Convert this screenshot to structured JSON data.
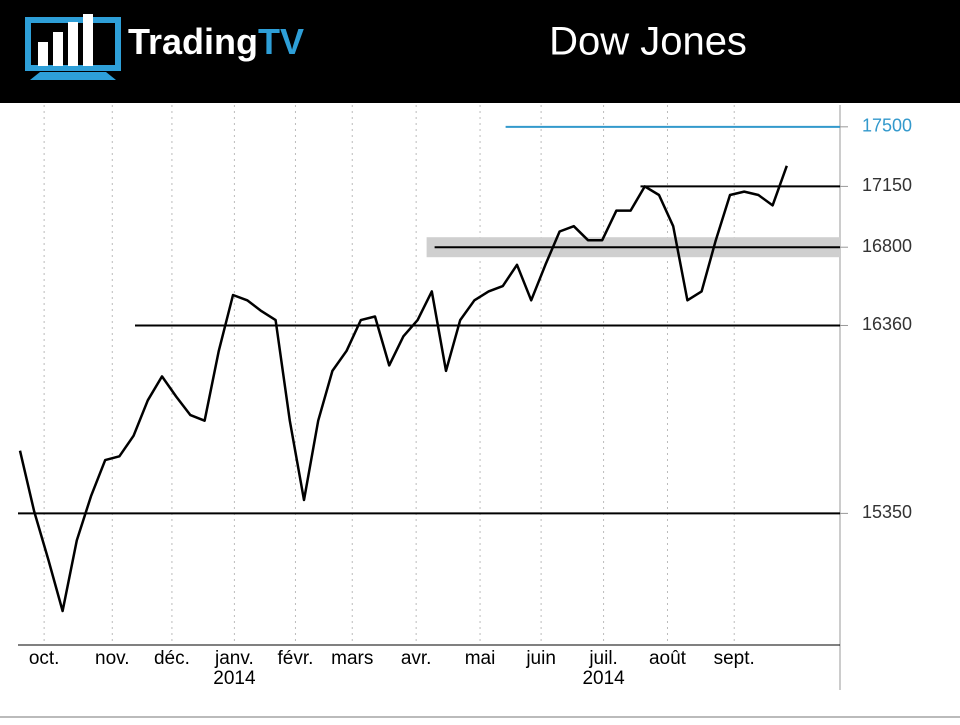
{
  "header": {
    "brand_main": "Trading",
    "brand_accent": "TV"
  },
  "chart_data": {
    "type": "line",
    "title": "Dow Jones",
    "color": "#000000",
    "log_scale": true,
    "values": [
      15680,
      15360,
      15110,
      14850,
      15210,
      15440,
      15630,
      15650,
      15760,
      15950,
      16080,
      15970,
      15870,
      15840,
      16220,
      16530,
      16500,
      16440,
      16390,
      15840,
      15420,
      15840,
      16110,
      16220,
      16390,
      16410,
      16140,
      16300,
      16390,
      16550,
      16110,
      16390,
      16500,
      16550,
      16580,
      16700,
      16500,
      16700,
      16890,
      16920,
      16840,
      16840,
      17010,
      17010,
      17150,
      17100,
      16920,
      16500,
      16550,
      16840,
      17100,
      17120,
      17100,
      17040,
      17270
    ],
    "xlim": [
      -0.14,
      57.75
    ],
    "ylim": [
      14680,
      17630
    ],
    "yticks": [
      15350,
      16360,
      16800,
      17150,
      17500
    ],
    "xticks": [
      {
        "value": 1.7,
        "label": "oct."
      },
      {
        "value": 6.5,
        "label": "nov."
      },
      {
        "value": 10.7,
        "label": "déc."
      },
      {
        "value": 15.1,
        "label": "janv."
      },
      {
        "value": 19.4,
        "label": "févr."
      },
      {
        "value": 23.4,
        "label": "mars"
      },
      {
        "value": 27.9,
        "label": "avr."
      },
      {
        "value": 32.4,
        "label": "mai"
      },
      {
        "value": 36.7,
        "label": "juin"
      },
      {
        "value": 41.1,
        "label": "juil."
      },
      {
        "value": 45.6,
        "label": "août"
      },
      {
        "value": 50.3,
        "label": "sept."
      }
    ],
    "year_labels": [
      {
        "value": 15.1,
        "label": "2014"
      },
      {
        "value": 41.1,
        "label": "2014"
      }
    ],
    "levels": [
      {
        "value": 17500,
        "from": 34.2,
        "color": "#3399cc"
      },
      {
        "value": 17150,
        "from": 43.7,
        "color": "#000000"
      },
      {
        "value": 16800,
        "from": 29.2,
        "color": "#000000",
        "band": true
      },
      {
        "value": 16360,
        "from": 8.1,
        "color": "#000000"
      },
      {
        "value": 15350,
        "from": -0.14,
        "color": "#000000"
      }
    ],
    "grid": true
  }
}
